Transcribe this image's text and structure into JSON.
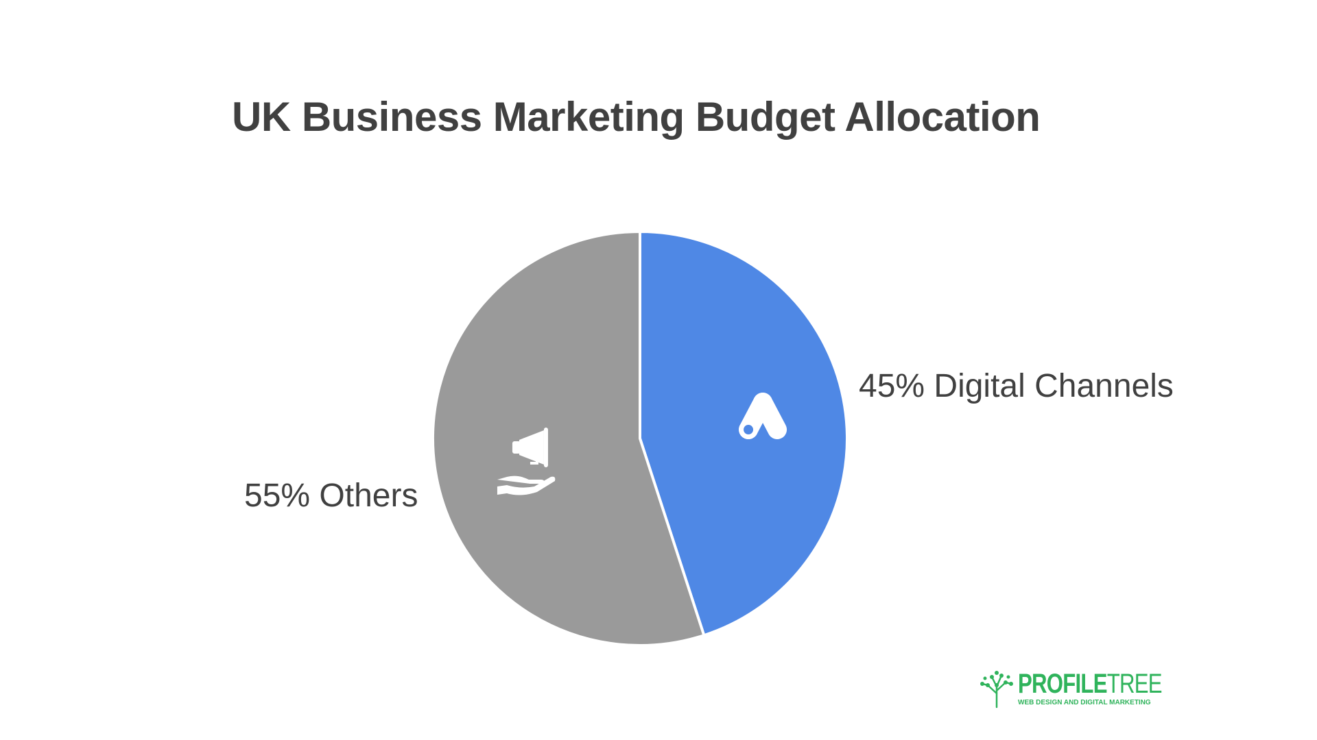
{
  "chart_data": {
    "type": "pie",
    "title": "UK Business Marketing Budget Allocation",
    "slices": [
      {
        "name": "Digital Channels",
        "value": 45,
        "label": "45% Digital Channels",
        "color": "#4f88e5",
        "icon": "google-ads-icon"
      },
      {
        "name": "Others",
        "value": 55,
        "label": "55% Others",
        "color": "#9a9a9a",
        "icon": "megaphone-hand-icon"
      }
    ],
    "start": "12 o'clock",
    "direction": "clockwise"
  },
  "branding": {
    "name_bold": "PROFILE",
    "name_light": "TREE",
    "tagline": "WEB DESIGN AND DIGITAL MARKETING",
    "color": "#2fb35b",
    "icon": "tree-logo-icon"
  }
}
